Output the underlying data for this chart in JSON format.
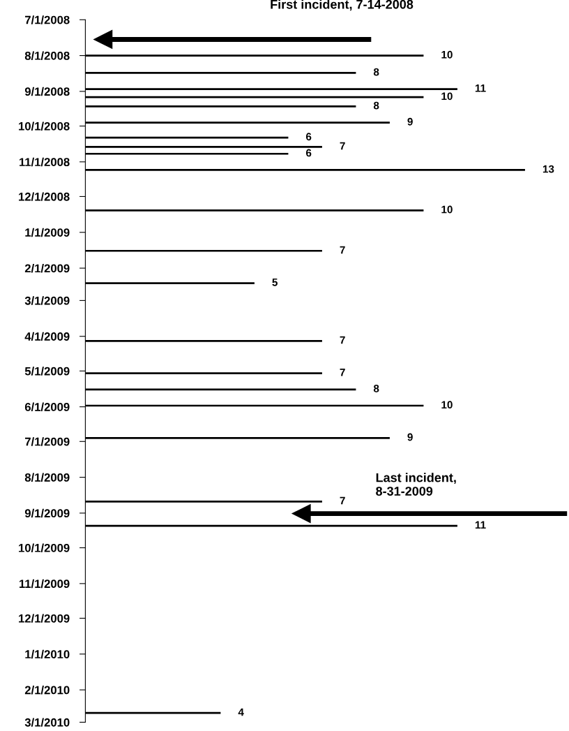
{
  "chart_data": {
    "type": "bar",
    "orientation": "horizontal",
    "data_labels": true,
    "color": "#000000",
    "x": [
      "2008-08-01",
      "2008-08-16",
      "2008-08-30",
      "2008-09-06",
      "2008-09-14",
      "2008-09-28",
      "2008-10-11",
      "2008-10-19",
      "2008-10-25",
      "2008-11-08",
      "2008-12-13",
      "2009-01-17",
      "2009-02-14",
      "2009-04-05",
      "2009-05-03",
      "2009-05-17",
      "2009-05-31",
      "2009-06-28",
      "2009-08-22",
      "2009-09-12",
      "2010-02-21"
    ],
    "values": [
      10,
      8,
      11,
      10,
      8,
      9,
      6,
      7,
      6,
      13,
      10,
      7,
      5,
      7,
      7,
      8,
      10,
      9,
      7,
      11,
      4
    ],
    "ylim": [
      "2010-03-01",
      "2008-07-01"
    ],
    "yticks": [
      {
        "value": "2008-07-01",
        "label": "7/1/2008"
      },
      {
        "value": "2008-08-01",
        "label": "8/1/2008"
      },
      {
        "value": "2008-09-01",
        "label": "9/1/2008"
      },
      {
        "value": "2008-10-01",
        "label": "10/1/2008"
      },
      {
        "value": "2008-11-01",
        "label": "11/1/2008"
      },
      {
        "value": "2008-12-01",
        "label": "12/1/2008"
      },
      {
        "value": "2009-01-01",
        "label": "1/1/2009"
      },
      {
        "value": "2009-02-01",
        "label": "2/1/2009"
      },
      {
        "value": "2009-03-01",
        "label": "3/1/2009"
      },
      {
        "value": "2009-04-01",
        "label": "4/1/2009"
      },
      {
        "value": "2009-05-01",
        "label": "5/1/2009"
      },
      {
        "value": "2009-06-01",
        "label": "6/1/2009"
      },
      {
        "value": "2009-07-01",
        "label": "7/1/2009"
      },
      {
        "value": "2009-08-01",
        "label": "8/1/2009"
      },
      {
        "value": "2009-09-01",
        "label": "9/1/2009"
      },
      {
        "value": "2009-10-01",
        "label": "10/1/2009"
      },
      {
        "value": "2009-11-01",
        "label": "11/1/2009"
      },
      {
        "value": "2009-12-01",
        "label": "12/1/2009"
      },
      {
        "value": "2010-01-01",
        "label": "1/1/2010"
      },
      {
        "value": "2010-02-01",
        "label": "2/1/2010"
      },
      {
        "value": "2010-03-01",
        "label": "3/1/2010"
      }
    ],
    "tick_labels": "y",
    "grid": false,
    "legend": false,
    "annotations": [
      "First incident, 7-14-2008",
      "Last incident,\n8-31-2009"
    ]
  }
}
